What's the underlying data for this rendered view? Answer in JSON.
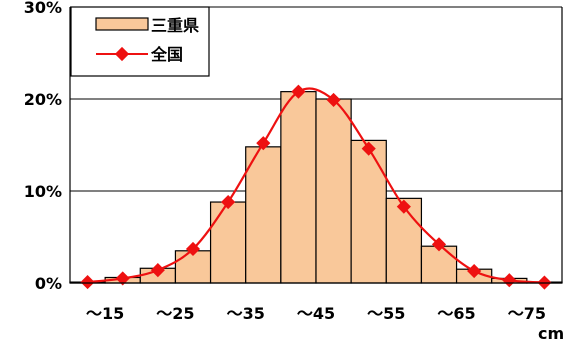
{
  "chart_data": {
    "type": "bar",
    "categories": [
      "~15",
      "",
      "~25",
      "",
      "~35",
      "",
      "~45",
      "",
      "~55",
      "",
      "~65",
      "",
      "~75",
      ""
    ],
    "x_tick_labels": [
      "～15",
      "～25",
      "～35",
      "～45",
      "～55",
      "～65",
      "～75"
    ],
    "y_tick_labels": [
      "30%",
      "20%",
      "10%",
      "0%"
    ],
    "x_unit": "cm",
    "ylim": [
      0,
      30
    ],
    "grid": true,
    "legend_position": "top-left",
    "series": [
      {
        "name": "三重県",
        "type": "bar",
        "color": "#f9c89a",
        "values": [
          0.1,
          0.6,
          1.6,
          3.5,
          8.8,
          14.8,
          20.8,
          20.0,
          15.5,
          9.2,
          4.0,
          1.5,
          0.5,
          0.1
        ]
      },
      {
        "name": "全国",
        "type": "line",
        "color": "#ee1111",
        "values": [
          0.1,
          0.5,
          1.4,
          3.7,
          8.8,
          15.2,
          20.8,
          19.9,
          14.6,
          8.3,
          4.2,
          1.3,
          0.3,
          0.05
        ]
      }
    ]
  }
}
